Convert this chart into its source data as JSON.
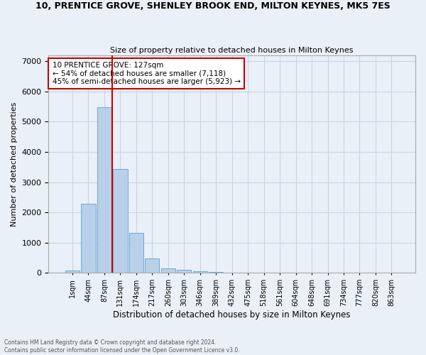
{
  "title": "10, PRENTICE GROVE, SHENLEY BROOK END, MILTON KEYNES, MK5 7ES",
  "subtitle": "Size of property relative to detached houses in Milton Keynes",
  "xlabel": "Distribution of detached houses by size in Milton Keynes",
  "ylabel": "Number of detached properties",
  "footer_line1": "Contains HM Land Registry data © Crown copyright and database right 2024.",
  "footer_line2": "Contains public sector information licensed under the Open Government Licence v3.0.",
  "bar_labels": [
    "1sqm",
    "44sqm",
    "87sqm",
    "131sqm",
    "174sqm",
    "217sqm",
    "260sqm",
    "303sqm",
    "346sqm",
    "389sqm",
    "432sqm",
    "475sqm",
    "518sqm",
    "561sqm",
    "604sqm",
    "648sqm",
    "691sqm",
    "734sqm",
    "777sqm",
    "820sqm",
    "863sqm"
  ],
  "bar_values": [
    80,
    2280,
    5480,
    3440,
    1320,
    470,
    155,
    90,
    55,
    35,
    0,
    0,
    0,
    0,
    0,
    0,
    0,
    0,
    0,
    0,
    0
  ],
  "bar_color": "#b8d0ea",
  "bar_edgecolor": "#6aaad4",
  "grid_color": "#c8d4e4",
  "background_color": "#eaf0f8",
  "vline_color": "#cc0000",
  "vline_x": 2.5,
  "annotation_text": "10 PRENTICE GROVE: 127sqm\n← 54% of detached houses are smaller (7,118)\n45% of semi-detached houses are larger (5,923) →",
  "annotation_box_color": "#ffffff",
  "annotation_box_edgecolor": "#cc0000",
  "ylim": [
    0,
    7200
  ],
  "yticks": [
    0,
    1000,
    2000,
    3000,
    4000,
    5000,
    6000,
    7000
  ]
}
